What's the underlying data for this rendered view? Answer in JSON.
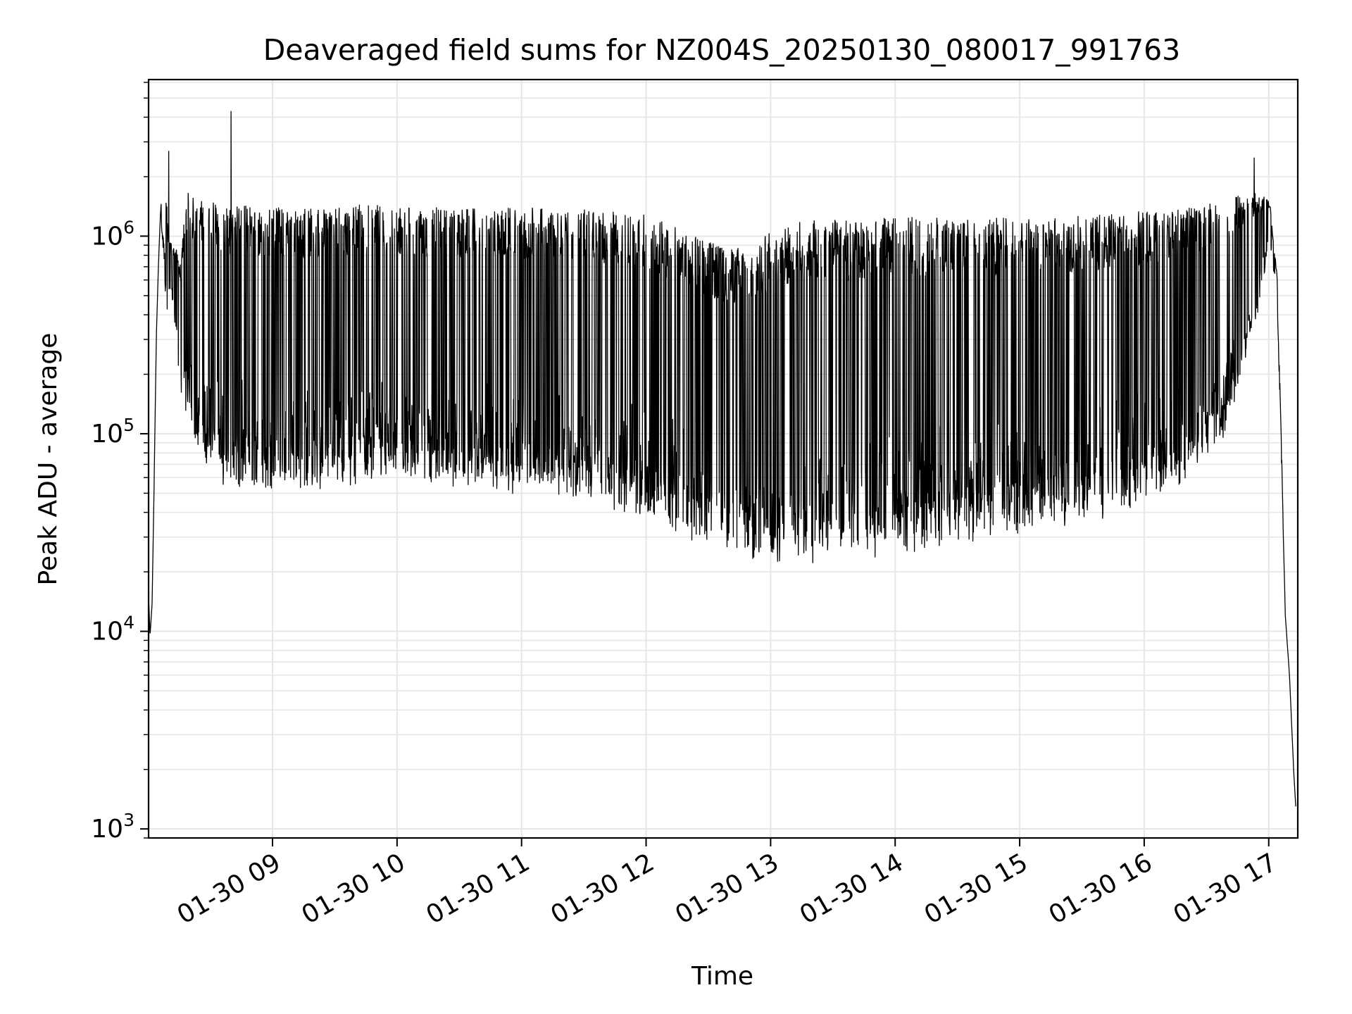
{
  "chart_data": {
    "type": "line",
    "title": "Deaveraged field sums for NZ004S_20250130_080017_991763",
    "xlabel": "Time",
    "ylabel": "Peak ADU - average",
    "y_scale": "log",
    "ylim": [
      900,
      6200000
    ],
    "xlim": [
      "2025-01-30 08:00:17",
      "2025-01-30 17:14:00"
    ],
    "x_ticks": [
      {
        "t": "2025-01-30 09:00",
        "label": "01-30 09"
      },
      {
        "t": "2025-01-30 10:00",
        "label": "01-30 10"
      },
      {
        "t": "2025-01-30 11:00",
        "label": "01-30 11"
      },
      {
        "t": "2025-01-30 12:00",
        "label": "01-30 12"
      },
      {
        "t": "2025-01-30 13:00",
        "label": "01-30 13"
      },
      {
        "t": "2025-01-30 14:00",
        "label": "01-30 14"
      },
      {
        "t": "2025-01-30 15:00",
        "label": "01-30 15"
      },
      {
        "t": "2025-01-30 16:00",
        "label": "01-30 16"
      },
      {
        "t": "2025-01-30 17:00",
        "label": "01-30 17"
      }
    ],
    "y_ticks": [
      {
        "value": 1000,
        "base": "10",
        "exp": "3"
      },
      {
        "value": 10000,
        "base": "10",
        "exp": "4"
      },
      {
        "value": 100000,
        "base": "10",
        "exp": "5"
      },
      {
        "value": 1000000,
        "base": "10",
        "exp": "6"
      }
    ],
    "grid": true,
    "grid_color": "#e6e6e6",
    "line_color": "#000000",
    "series": [
      {
        "x": [
          "2025-01-30 08:00:17",
          "2025-01-30 08:01",
          "2025-01-30 08:02",
          "2025-01-30 08:03",
          "2025-01-30 08:04",
          "2025-01-30 08:05",
          "2025-01-30 08:06",
          "2025-01-30 08:07",
          "2025-01-30 08:08",
          "2025-01-30 08:09",
          "2025-01-30 08:10",
          "2025-01-30 08:12",
          "2025-01-30 08:14",
          "2025-01-30 08:16",
          "2025-01-30 08:18",
          "2025-01-30 08:20",
          "2025-01-30 08:24",
          "2025-01-30 08:30",
          "2025-01-30 08:36",
          "2025-01-30 08:42",
          "2025-01-30 08:48",
          "2025-01-30 09:00",
          "2025-01-30 09:15",
          "2025-01-30 09:30",
          "2025-01-30 09:45",
          "2025-01-30 10:00",
          "2025-01-30 10:20",
          "2025-01-30 10:40",
          "2025-01-30 11:00",
          "2025-01-30 11:20",
          "2025-01-30 11:40",
          "2025-01-30 12:00",
          "2025-01-30 12:20",
          "2025-01-30 12:40",
          "2025-01-30 13:00",
          "2025-01-30 13:20",
          "2025-01-30 13:40",
          "2025-01-30 14:00",
          "2025-01-30 14:20",
          "2025-01-30 14:40",
          "2025-01-30 15:00",
          "2025-01-30 15:20",
          "2025-01-30 15:40",
          "2025-01-30 16:00",
          "2025-01-30 16:20",
          "2025-01-30 16:40",
          "2025-01-30 16:55",
          "2025-01-30 17:00",
          "2025-01-30 17:01",
          "2025-01-30 17:02",
          "2025-01-30 17:04",
          "2025-01-30 17:06",
          "2025-01-30 17:08",
          "2025-01-30 17:10",
          "2025-01-30 17:12",
          "2025-01-30 17:13"
        ],
        "y_high": [
          15000,
          9500,
          14000,
          60000,
          300000,
          700000,
          1300000,
          1900000,
          2200000,
          1500000,
          950000,
          900000,
          850000,
          700000,
          1800000,
          1600000,
          1550000,
          1500000,
          1450000,
          1450000,
          1450000,
          1400000,
          1400000,
          1420000,
          1450000,
          1420000,
          1400000,
          1380000,
          1400000,
          1380000,
          1350000,
          1300000,
          1050000,
          850000,
          1050000,
          1250000,
          1200000,
          1250000,
          1250000,
          1250000,
          1250000,
          1250000,
          1300000,
          1350000,
          1400000,
          1550000,
          1700000,
          1500000,
          1400000,
          1000000,
          650000,
          100000,
          12000,
          6000,
          2000,
          1300
        ],
        "y_low": [
          15000,
          9500,
          14000,
          60000,
          300000,
          700000,
          1300000,
          900000,
          700000,
          250000,
          500000,
          450000,
          250000,
          150000,
          120000,
          100000,
          80000,
          65000,
          55000,
          50000,
          48000,
          48000,
          50000,
          52000,
          55000,
          55000,
          52000,
          50000,
          48000,
          45000,
          40000,
          35000,
          28000,
          24000,
          22000,
          21000,
          22000,
          24000,
          26000,
          28000,
          30000,
          32000,
          36000,
          40000,
          55000,
          100000,
          400000,
          900000,
          800000,
          700000,
          500000,
          80000,
          12000,
          6000,
          2000,
          1300
        ]
      }
    ],
    "annotations_spikes": [
      {
        "t": "2025-01-30 08:40",
        "value": 4300000
      },
      {
        "t": "2025-01-30 16:53",
        "value": 2500000
      },
      {
        "t": "2025-01-30 08:10",
        "value": 2700000
      }
    ]
  }
}
